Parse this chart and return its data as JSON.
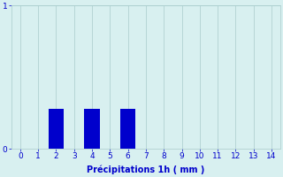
{
  "categories": [
    0,
    1,
    2,
    3,
    4,
    5,
    6,
    7,
    8,
    9,
    10,
    11,
    12,
    13,
    14
  ],
  "values": [
    0,
    0,
    0.28,
    0,
    0.28,
    0,
    0.28,
    0,
    0,
    0,
    0,
    0,
    0,
    0,
    0
  ],
  "bar_color": "#0000cc",
  "background_color": "#d8f0f0",
  "grid_color": "#aacccc",
  "axis_color": "#0000cc",
  "xlabel": "Précipitations 1h ( mm )",
  "xlabel_fontsize": 7,
  "tick_fontsize": 6.5,
  "ylim": [
    0,
    1.0
  ],
  "yticks": [
    0,
    1
  ],
  "xlim": [
    -0.5,
    14.5
  ],
  "bar_width": 0.85
}
